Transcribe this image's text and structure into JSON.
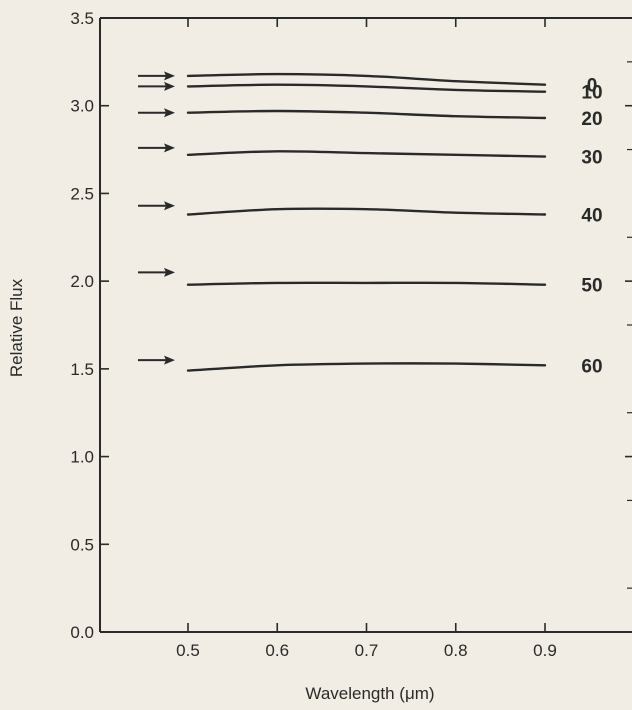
{
  "chart_data": {
    "type": "line",
    "title": "",
    "xlabel": "Wavelength (μm)",
    "ylabel": "Relative Flux",
    "xlim": [
      0.4,
      0.97
    ],
    "ylim": [
      0.0,
      3.5
    ],
    "x_ticks": [
      0.5,
      0.6,
      0.7,
      0.8,
      0.9
    ],
    "x_tick_labels": [
      "0.5",
      "0.6",
      "0.7",
      "0.8",
      "0.9"
    ],
    "y_ticks": [
      0.0,
      0.5,
      1.0,
      1.5,
      2.0,
      2.5,
      3.0,
      3.5
    ],
    "y_tick_labels": [
      "0.0",
      "0.5",
      "1.0",
      "1.5",
      "2.0",
      "2.5",
      "3.0",
      "3.5"
    ],
    "grid": false,
    "legend": "curve labels at right end of each line",
    "series": [
      {
        "name": "0",
        "arrow_y": 3.17,
        "x": [
          0.5,
          0.6,
          0.7,
          0.8,
          0.9
        ],
        "y": [
          3.17,
          3.18,
          3.17,
          3.14,
          3.12
        ]
      },
      {
        "name": "10",
        "arrow_y": 3.11,
        "x": [
          0.5,
          0.6,
          0.7,
          0.8,
          0.9
        ],
        "y": [
          3.11,
          3.12,
          3.11,
          3.09,
          3.08
        ]
      },
      {
        "name": "20",
        "arrow_y": 2.96,
        "x": [
          0.5,
          0.6,
          0.7,
          0.8,
          0.9
        ],
        "y": [
          2.96,
          2.97,
          2.96,
          2.94,
          2.93
        ]
      },
      {
        "name": "30",
        "arrow_y": 2.76,
        "x": [
          0.5,
          0.6,
          0.7,
          0.8,
          0.9
        ],
        "y": [
          2.72,
          2.74,
          2.73,
          2.72,
          2.71
        ]
      },
      {
        "name": "40",
        "arrow_y": 2.43,
        "x": [
          0.5,
          0.6,
          0.7,
          0.8,
          0.9
        ],
        "y": [
          2.38,
          2.41,
          2.41,
          2.39,
          2.38
        ]
      },
      {
        "name": "50",
        "arrow_y": 2.05,
        "x": [
          0.5,
          0.6,
          0.7,
          0.8,
          0.9
        ],
        "y": [
          1.98,
          1.99,
          1.99,
          1.99,
          1.98
        ]
      },
      {
        "name": "60",
        "arrow_y": 1.55,
        "x": [
          0.5,
          0.6,
          0.7,
          0.8,
          0.9
        ],
        "y": [
          1.49,
          1.52,
          1.53,
          1.53,
          1.52
        ]
      }
    ],
    "colors": {
      "background": "#f1ede4",
      "ink": "#2a2a2a"
    }
  }
}
